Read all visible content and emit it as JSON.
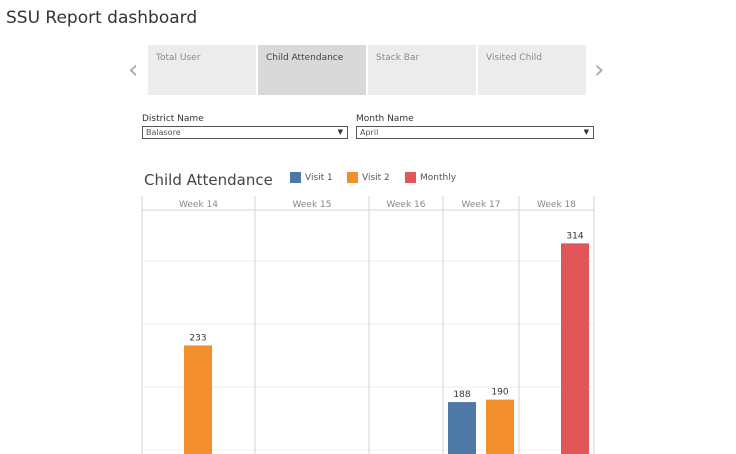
{
  "title": "SSU Report dashboard",
  "tabs": [
    {
      "label": "Total User"
    },
    {
      "label": "Child Attendance",
      "active": true
    },
    {
      "label": "Stack Bar"
    },
    {
      "label": "Visited Child"
    }
  ],
  "filters": {
    "district": {
      "label": "District Name",
      "value": "Balasore"
    },
    "month": {
      "label": "Month Name",
      "value": "April"
    }
  },
  "chart_data": {
    "type": "bar",
    "title": "Child Attendance",
    "categories": [
      "Week 14",
      "Week 15",
      "Week 16",
      "Week 17",
      "Week 18"
    ],
    "legend": [
      {
        "name": "Visit 1",
        "color": "#4e79a7"
      },
      {
        "name": "Visit 2",
        "color": "#f28e2b"
      },
      {
        "name": "Monthly",
        "color": "#e15759"
      }
    ],
    "bars": [
      {
        "week": "Week 14",
        "series": "Visit 2",
        "value": 233
      },
      {
        "week": "Week 17",
        "series": "Visit 1",
        "value": 188
      },
      {
        "week": "Week 17",
        "series": "Visit 2",
        "value": 190
      },
      {
        "week": "Week 18",
        "series": "Monthly",
        "value": 314
      }
    ],
    "grid": true,
    "gridline_step": 50
  }
}
